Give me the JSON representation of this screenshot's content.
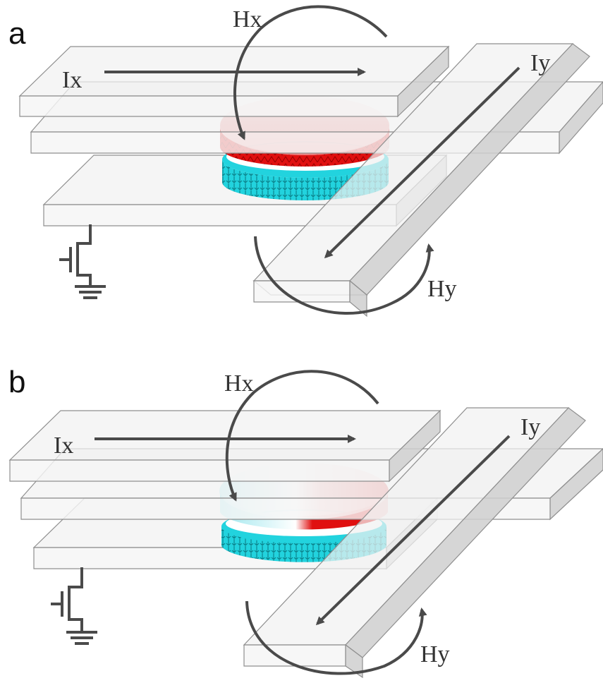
{
  "panels": [
    {
      "letter": "a",
      "labels": {
        "hx": "Hx",
        "ix": "Ix",
        "iy": "Iy",
        "hy": "Hy"
      },
      "state": "uniform"
    },
    {
      "letter": "b",
      "labels": {
        "hx": "Hx",
        "ix": "Ix",
        "iy": "Iy",
        "hy": "Hy"
      },
      "state": "skyrmion"
    }
  ],
  "colors": {
    "free_layer_red": "#e01010",
    "free_layer_pink": "#f2a2a2",
    "reference_layer_cyan": "#22d3de",
    "arrow_gray": "#4a4a4a",
    "slab_gray": "#f1f1f1"
  }
}
